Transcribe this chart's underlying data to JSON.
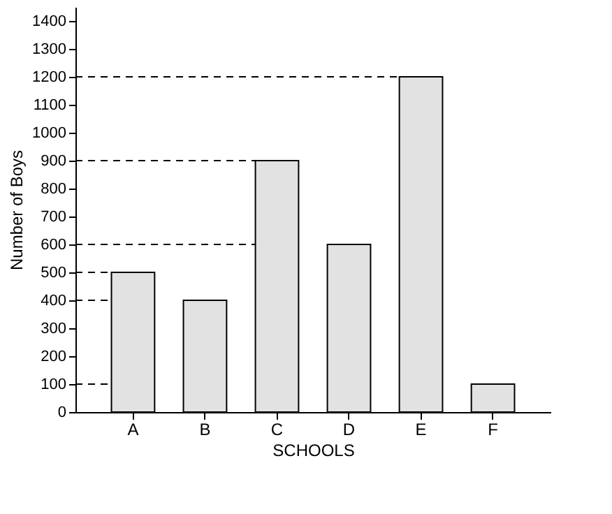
{
  "chart_data": {
    "type": "bar",
    "xlabel": "SCHOOLS",
    "ylabel": "Number of Boys",
    "categories": [
      "A",
      "B",
      "C",
      "D",
      "E",
      "F"
    ],
    "values": [
      500,
      400,
      900,
      600,
      1200,
      100
    ],
    "color": "#e2e2e2",
    "ylim": [
      0,
      1450
    ],
    "yticks": [
      0,
      100,
      200,
      300,
      400,
      500,
      600,
      700,
      800,
      900,
      1000,
      1100,
      1200,
      1300,
      1400
    ],
    "grid": false,
    "ref_lines": [
      {
        "axis": "y",
        "value": 500,
        "line_style": "dashed"
      },
      {
        "axis": "y",
        "value": 400,
        "line_style": "dashed"
      },
      {
        "axis": "y",
        "value": 900,
        "line_style": "dashed"
      },
      {
        "axis": "y",
        "value": 600,
        "line_style": "dashed"
      },
      {
        "axis": "y",
        "value": 1200,
        "line_style": "dashed"
      },
      {
        "axis": "y",
        "value": 100,
        "line_style": "dashed"
      }
    ]
  }
}
